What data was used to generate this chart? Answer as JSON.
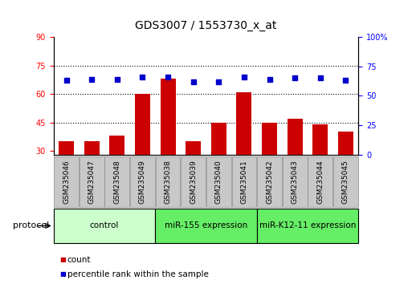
{
  "title": "GDS3007 / 1553730_x_at",
  "samples": [
    "GSM235046",
    "GSM235047",
    "GSM235048",
    "GSM235049",
    "GSM235038",
    "GSM235039",
    "GSM235040",
    "GSM235041",
    "GSM235042",
    "GSM235043",
    "GSM235044",
    "GSM235045"
  ],
  "count_values": [
    35,
    35,
    38,
    60,
    68,
    35,
    45,
    61,
    45,
    47,
    44,
    40
  ],
  "percentile_values": [
    63,
    64,
    64,
    66,
    66,
    62,
    62,
    66,
    64,
    65,
    65,
    63
  ],
  "left_ylim": [
    28,
    90
  ],
  "left_yticks": [
    30,
    45,
    60,
    75,
    90
  ],
  "right_ylim": [
    0,
    100
  ],
  "right_yticks": [
    0,
    25,
    50,
    75,
    100
  ],
  "right_yticklabels": [
    "0",
    "25",
    "50",
    "75",
    "100%"
  ],
  "bar_color": "#cc0000",
  "dot_color": "#0000cc",
  "groups": [
    {
      "label": "control",
      "start": 0,
      "end": 4,
      "color": "#ccffcc"
    },
    {
      "label": "miR-155 expression",
      "start": 4,
      "end": 8,
      "color": "#66ee66"
    },
    {
      "label": "miR-K12-11 expression",
      "start": 8,
      "end": 12,
      "color": "#66ee66"
    }
  ],
  "protocol_label": "protocol",
  "legend_count_label": "count",
  "legend_pct_label": "percentile rank within the sample",
  "grid_yticks": [
    45,
    60,
    75
  ],
  "title_fontsize": 10,
  "tick_fontsize": 7,
  "label_fontsize": 8
}
